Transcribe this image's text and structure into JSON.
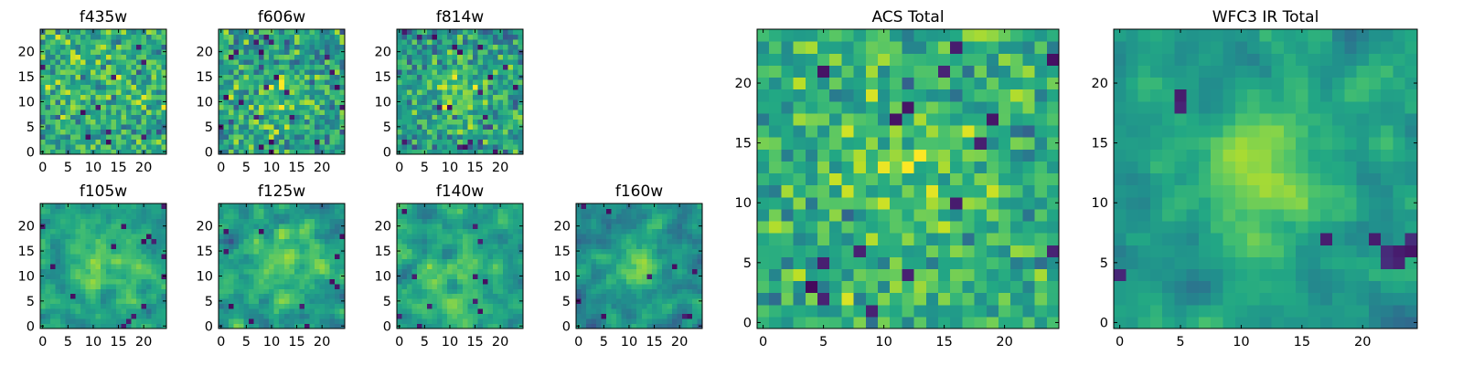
{
  "figure": {
    "description_type": "grid of 2D image cutouts (heatmaps)",
    "colormap": "viridis"
  },
  "chart_data": [
    {
      "type": "heatmap",
      "title": "f435w",
      "grid": [
        25,
        25
      ],
      "xlim": [
        0,
        24
      ],
      "ylim": [
        0,
        24
      ],
      "xticks": [
        "0",
        "5",
        "10",
        "15",
        "20"
      ],
      "yticks": [
        "0",
        "5",
        "10",
        "15",
        "20"
      ],
      "seed": 11,
      "noise": 0.42,
      "blob": {
        "cx": 12,
        "cy": 12,
        "sigma": 6,
        "amp": 0.05
      },
      "base": 0.62,
      "smooth": 0,
      "dark_frac": 0.03
    },
    {
      "type": "heatmap",
      "title": "f606w",
      "grid": [
        25,
        25
      ],
      "xlim": [
        0,
        24
      ],
      "ylim": [
        0,
        24
      ],
      "xticks": [
        "0",
        "5",
        "10",
        "15",
        "20"
      ],
      "yticks": [
        "0",
        "5",
        "10",
        "15",
        "20"
      ],
      "seed": 23,
      "noise": 0.45,
      "blob": {
        "cx": 12,
        "cy": 11,
        "sigma": 4,
        "amp": 0.12
      },
      "base": 0.58,
      "smooth": 0,
      "dark_frac": 0.03
    },
    {
      "type": "heatmap",
      "title": "f814w",
      "grid": [
        25,
        25
      ],
      "xlim": [
        0,
        24
      ],
      "ylim": [
        0,
        24
      ],
      "xticks": [
        "0",
        "5",
        "10",
        "15",
        "20"
      ],
      "yticks": [
        "0",
        "5",
        "10",
        "15",
        "20"
      ],
      "seed": 37,
      "noise": 0.42,
      "blob": {
        "cx": 12,
        "cy": 12,
        "sigma": 4,
        "amp": 0.22
      },
      "base": 0.55,
      "smooth": 0,
      "dark_frac": 0.03
    },
    {
      "type": "heatmap",
      "title": "f105w",
      "grid": [
        25,
        25
      ],
      "xlim": [
        0,
        24
      ],
      "ylim": [
        0,
        24
      ],
      "xticks": [
        "0",
        "5",
        "10",
        "15",
        "20"
      ],
      "yticks": [
        "0",
        "5",
        "10",
        "15",
        "20"
      ],
      "seed": 41,
      "noise": 0.38,
      "blob": {
        "cx": 12,
        "cy": 13,
        "sigma": 5,
        "amp": 0.2
      },
      "base": 0.55,
      "smooth": 1,
      "dark_frac": 0.02
    },
    {
      "type": "heatmap",
      "title": "f125w",
      "grid": [
        25,
        25
      ],
      "xlim": [
        0,
        24
      ],
      "ylim": [
        0,
        24
      ],
      "xticks": [
        "0",
        "5",
        "10",
        "15",
        "20"
      ],
      "yticks": [
        "0",
        "5",
        "10",
        "15",
        "20"
      ],
      "seed": 53,
      "noise": 0.4,
      "blob": {
        "cx": 12,
        "cy": 12,
        "sigma": 5,
        "amp": 0.18
      },
      "base": 0.55,
      "smooth": 1,
      "dark_frac": 0.02
    },
    {
      "type": "heatmap",
      "title": "f140w",
      "grid": [
        25,
        25
      ],
      "xlim": [
        0,
        24
      ],
      "ylim": [
        0,
        24
      ],
      "xticks": [
        "0",
        "5",
        "10",
        "15",
        "20"
      ],
      "yticks": [
        "0",
        "5",
        "10",
        "15",
        "20"
      ],
      "seed": 67,
      "noise": 0.4,
      "blob": {
        "cx": 10,
        "cy": 8,
        "sigma": 6,
        "amp": 0.15
      },
      "base": 0.55,
      "smooth": 1,
      "dark_frac": 0.02
    },
    {
      "type": "heatmap",
      "title": "f160w",
      "grid": [
        25,
        25
      ],
      "xlim": [
        0,
        24
      ],
      "ylim": [
        0,
        24
      ],
      "xticks": [
        "0",
        "5",
        "10",
        "15",
        "20"
      ],
      "yticks": [
        "0",
        "5",
        "10",
        "15",
        "20"
      ],
      "seed": 79,
      "noise": 0.38,
      "blob": {
        "cx": 12,
        "cy": 12,
        "sigma": 3,
        "amp": 0.32
      },
      "base": 0.5,
      "smooth": 1,
      "dark_frac": 0.02
    },
    {
      "type": "heatmap",
      "title": "ACS Total",
      "grid": [
        25,
        25
      ],
      "xlim": [
        0,
        24
      ],
      "ylim": [
        0,
        24
      ],
      "xticks": [
        "0",
        "5",
        "10",
        "15",
        "20"
      ],
      "yticks": [
        "0",
        "5",
        "10",
        "15",
        "20"
      ],
      "seed": 97,
      "noise": 0.36,
      "blob": {
        "cx": 12,
        "cy": 12,
        "sigma": 5,
        "amp": 0.12
      },
      "base": 0.62,
      "smooth": 0,
      "dark_frac": 0.025
    },
    {
      "type": "heatmap",
      "title": "WFC3 IR Total",
      "grid": [
        25,
        25
      ],
      "xlim": [
        0,
        24
      ],
      "ylim": [
        0,
        24
      ],
      "xticks": [
        "0",
        "5",
        "10",
        "15",
        "20"
      ],
      "yticks": [
        "0",
        "5",
        "10",
        "15",
        "20"
      ],
      "seed": 113,
      "noise": 0.3,
      "blob": {
        "cx": 12,
        "cy": 12,
        "sigma": 3.5,
        "amp": 0.3
      },
      "base": 0.55,
      "smooth": 1,
      "dark_frac": 0.01,
      "dark_spots": [
        [
          21,
          7
        ],
        [
          22,
          6
        ],
        [
          23,
          6
        ],
        [
          24,
          7
        ],
        [
          24,
          6
        ],
        [
          22,
          5
        ],
        [
          5,
          18
        ],
        [
          5,
          19
        ],
        [
          0,
          4
        ]
      ]
    }
  ]
}
